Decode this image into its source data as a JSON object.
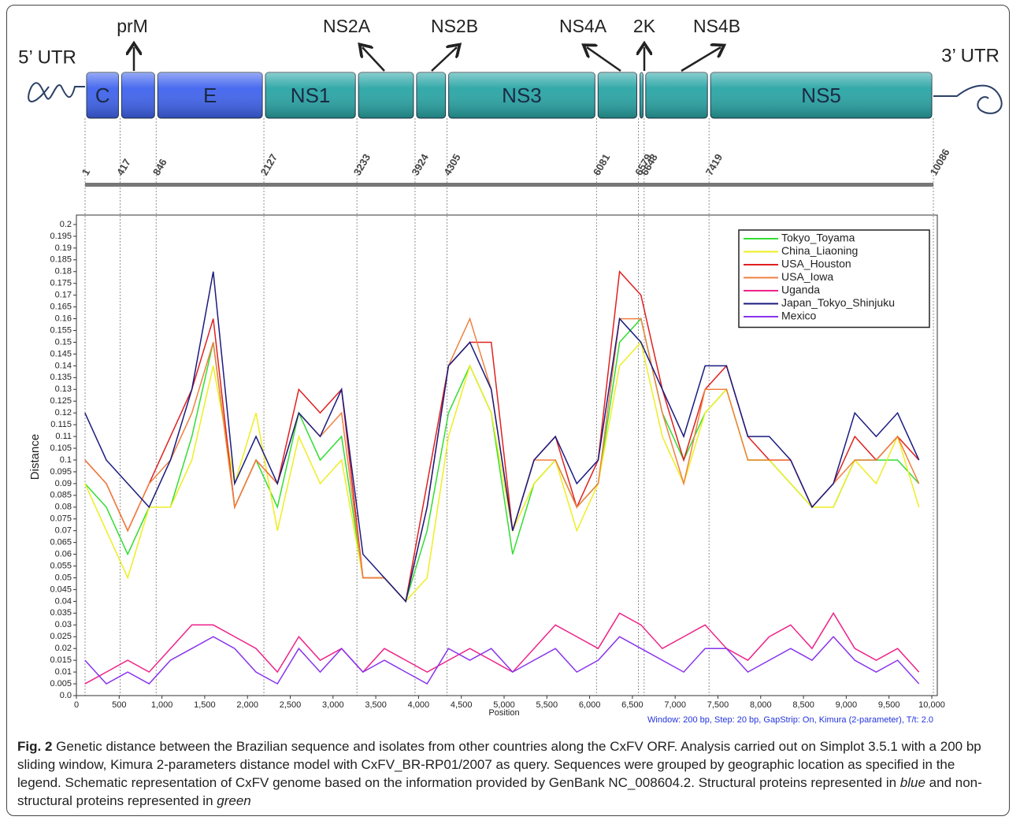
{
  "genome": {
    "utr5": "5’ UTR",
    "utr3": "3’ UTR",
    "positions": [
      1,
      417,
      846,
      2127,
      3233,
      3924,
      4305,
      6081,
      6579,
      6648,
      7419,
      10086
    ],
    "segments": [
      {
        "name": "C",
        "color": "#3f63ee"
      },
      {
        "name": "prM",
        "color": "#3f63ee"
      },
      {
        "name": "E",
        "color": "#3f63ee"
      },
      {
        "name": "NS1",
        "color": "#29a5a5"
      },
      {
        "name": "NS2A",
        "color": "#29a5a5"
      },
      {
        "name": "NS2B",
        "color": "#29a5a5"
      },
      {
        "name": "NS3",
        "color": "#29a5a5"
      },
      {
        "name": "NS4A",
        "color": "#29a5a5"
      },
      {
        "name": "2K",
        "color": "#29a5a5"
      },
      {
        "name": "NS4B",
        "color": "#29a5a5"
      },
      {
        "name": "NS5",
        "color": "#29a5a5"
      }
    ]
  },
  "chart_data": {
    "type": "line",
    "xlabel": "Position",
    "ylabel": "Distance",
    "note": "Window: 200 bp, Step: 20 bp, GapStrip: On, Kimura (2-parameter), T/t: 2.0",
    "x": [
      100,
      350,
      600,
      850,
      1100,
      1350,
      1600,
      1850,
      2100,
      2350,
      2600,
      2850,
      3100,
      3350,
      3600,
      3850,
      4100,
      4350,
      4600,
      4850,
      5100,
      5350,
      5600,
      5850,
      6100,
      6350,
      6600,
      6850,
      7100,
      7350,
      7600,
      7850,
      8100,
      8350,
      8600,
      8850,
      9100,
      9350,
      9600,
      9850
    ],
    "xlim": [
      0,
      10000
    ],
    "xticks": [
      0,
      500,
      {
        "value": 1000,
        "label": "1,000"
      },
      {
        "value": 1500,
        "label": "1,500"
      },
      {
        "value": 2000,
        "label": "2,000"
      },
      {
        "value": 2500,
        "label": "2,500"
      },
      {
        "value": 3000,
        "label": "3,000"
      },
      {
        "value": 3500,
        "label": "3,500"
      },
      {
        "value": 4000,
        "label": "4,000"
      },
      {
        "value": 4500,
        "label": "4,500"
      },
      {
        "value": 5000,
        "label": "5,000"
      },
      {
        "value": 5500,
        "label": "5,500"
      },
      {
        "value": 6000,
        "label": "6,000"
      },
      {
        "value": 6500,
        "label": "6,500"
      },
      {
        "value": 7000,
        "label": "7,000"
      },
      {
        "value": 7500,
        "label": "7,500"
      },
      {
        "value": 8000,
        "label": "8,000"
      },
      {
        "value": 8500,
        "label": "8,500"
      },
      {
        "value": 9000,
        "label": "9,000"
      },
      {
        "value": 9500,
        "label": "9,500"
      },
      {
        "value": 10000,
        "label": "10,000"
      }
    ],
    "ylim": [
      0,
      0.204
    ],
    "yticks": [
      {
        "value": 0,
        "label": "0.0"
      },
      0.005,
      0.01,
      0.015,
      0.02,
      0.025,
      0.03,
      0.035,
      0.04,
      0.045,
      0.05,
      0.055,
      0.06,
      0.065,
      0.07,
      0.075,
      0.08,
      0.085,
      0.09,
      0.095,
      0.1,
      0.105,
      0.11,
      0.115,
      0.12,
      0.125,
      0.13,
      0.135,
      0.14,
      0.145,
      0.15,
      0.155,
      0.16,
      0.165,
      0.17,
      0.175,
      0.18,
      0.185,
      0.19,
      0.195,
      0.2
    ],
    "legend": "top-right",
    "series": [
      {
        "name": "Tokyo_Toyama",
        "color": "#33dd33",
        "values": [
          0.09,
          0.08,
          0.06,
          0.08,
          0.08,
          0.11,
          0.15,
          0.08,
          0.1,
          0.08,
          0.12,
          0.1,
          0.11,
          0.05,
          0.05,
          0.04,
          0.07,
          0.12,
          0.14,
          0.12,
          0.06,
          0.09,
          0.1,
          0.08,
          0.09,
          0.15,
          0.16,
          0.12,
          0.1,
          0.12,
          0.13,
          0.1,
          0.1,
          0.09,
          0.08,
          0.08,
          0.1,
          0.1,
          0.1,
          0.09
        ]
      },
      {
        "name": "China_Liaoning",
        "color": "#eeee22",
        "values": [
          0.09,
          0.07,
          0.05,
          0.08,
          0.08,
          0.1,
          0.14,
          0.09,
          0.12,
          0.07,
          0.11,
          0.09,
          0.1,
          0.05,
          0.05,
          0.04,
          0.05,
          0.11,
          0.14,
          0.12,
          0.07,
          0.09,
          0.1,
          0.07,
          0.09,
          0.14,
          0.15,
          0.11,
          0.09,
          0.12,
          0.13,
          0.1,
          0.1,
          0.09,
          0.08,
          0.08,
          0.1,
          0.09,
          0.11,
          0.08
        ]
      },
      {
        "name": "USA_Houston",
        "color": "#e02020",
        "values": [
          0.1,
          0.09,
          0.07,
          0.09,
          0.11,
          0.13,
          0.16,
          0.08,
          0.1,
          0.09,
          0.13,
          0.12,
          0.13,
          0.05,
          0.05,
          0.04,
          0.09,
          0.14,
          0.15,
          0.15,
          0.07,
          0.1,
          0.11,
          0.08,
          0.1,
          0.18,
          0.17,
          0.13,
          0.1,
          0.13,
          0.14,
          0.11,
          0.1,
          0.1,
          0.08,
          0.09,
          0.11,
          0.1,
          0.11,
          0.1
        ]
      },
      {
        "name": "USA_Iowa",
        "color": "#f08040",
        "values": [
          0.1,
          0.09,
          0.07,
          0.09,
          0.1,
          0.12,
          0.15,
          0.08,
          0.1,
          0.09,
          0.12,
          0.11,
          0.12,
          0.05,
          0.05,
          0.04,
          0.08,
          0.14,
          0.16,
          0.13,
          0.07,
          0.1,
          0.1,
          0.08,
          0.09,
          0.16,
          0.16,
          0.12,
          0.09,
          0.13,
          0.13,
          0.1,
          0.1,
          0.1,
          0.08,
          0.09,
          0.1,
          0.1,
          0.11,
          0.09
        ]
      },
      {
        "name": "Uganda",
        "color": "#ee2288",
        "values": [
          0.005,
          0.01,
          0.015,
          0.01,
          0.02,
          0.03,
          0.03,
          0.025,
          0.02,
          0.01,
          0.025,
          0.015,
          0.02,
          0.01,
          0.02,
          0.015,
          0.01,
          0.015,
          0.02,
          0.015,
          0.01,
          0.02,
          0.03,
          0.025,
          0.02,
          0.035,
          0.03,
          0.02,
          0.025,
          0.03,
          0.02,
          0.015,
          0.025,
          0.03,
          0.02,
          0.035,
          0.02,
          0.015,
          0.02,
          0.01
        ]
      },
      {
        "name": "Japan_Tokyo_Shinjuku",
        "color": "#1a1a80",
        "values": [
          0.12,
          0.1,
          0.09,
          0.08,
          0.1,
          0.13,
          0.18,
          0.09,
          0.11,
          0.09,
          0.12,
          0.11,
          0.13,
          0.06,
          0.05,
          0.04,
          0.08,
          0.14,
          0.15,
          0.13,
          0.07,
          0.1,
          0.11,
          0.09,
          0.1,
          0.16,
          0.15,
          0.13,
          0.11,
          0.14,
          0.14,
          0.11,
          0.11,
          0.1,
          0.08,
          0.09,
          0.12,
          0.11,
          0.12,
          0.1
        ]
      },
      {
        "name": "Mexico",
        "color": "#8833ee",
        "values": [
          0.015,
          0.005,
          0.01,
          0.005,
          0.015,
          0.02,
          0.025,
          0.02,
          0.01,
          0.005,
          0.02,
          0.01,
          0.02,
          0.01,
          0.015,
          0.01,
          0.005,
          0.02,
          0.015,
          0.02,
          0.01,
          0.015,
          0.02,
          0.01,
          0.015,
          0.025,
          0.02,
          0.015,
          0.01,
          0.02,
          0.02,
          0.01,
          0.015,
          0.02,
          0.015,
          0.025,
          0.015,
          0.01,
          0.015,
          0.005
        ]
      }
    ]
  },
  "caption": {
    "label": "Fig. 2",
    "text1": "Genetic distance between the Brazilian sequence and isolates from other countries along the CxFV ORF. Analysis carried out on Simplot 3.5.1 with a 200 bp sliding window, Kimura 2-parameters distance model with CxFV_BR-RP01/2007 as query. Sequences were grouped by geographic location as specified in the legend. Schematic representation of CxFV genome based on the information provided by GenBank NC_008604.2. Structural proteins represented in",
    "emph1": "blue",
    "text2": "and non-structural proteins represented in",
    "emph2": "green"
  }
}
